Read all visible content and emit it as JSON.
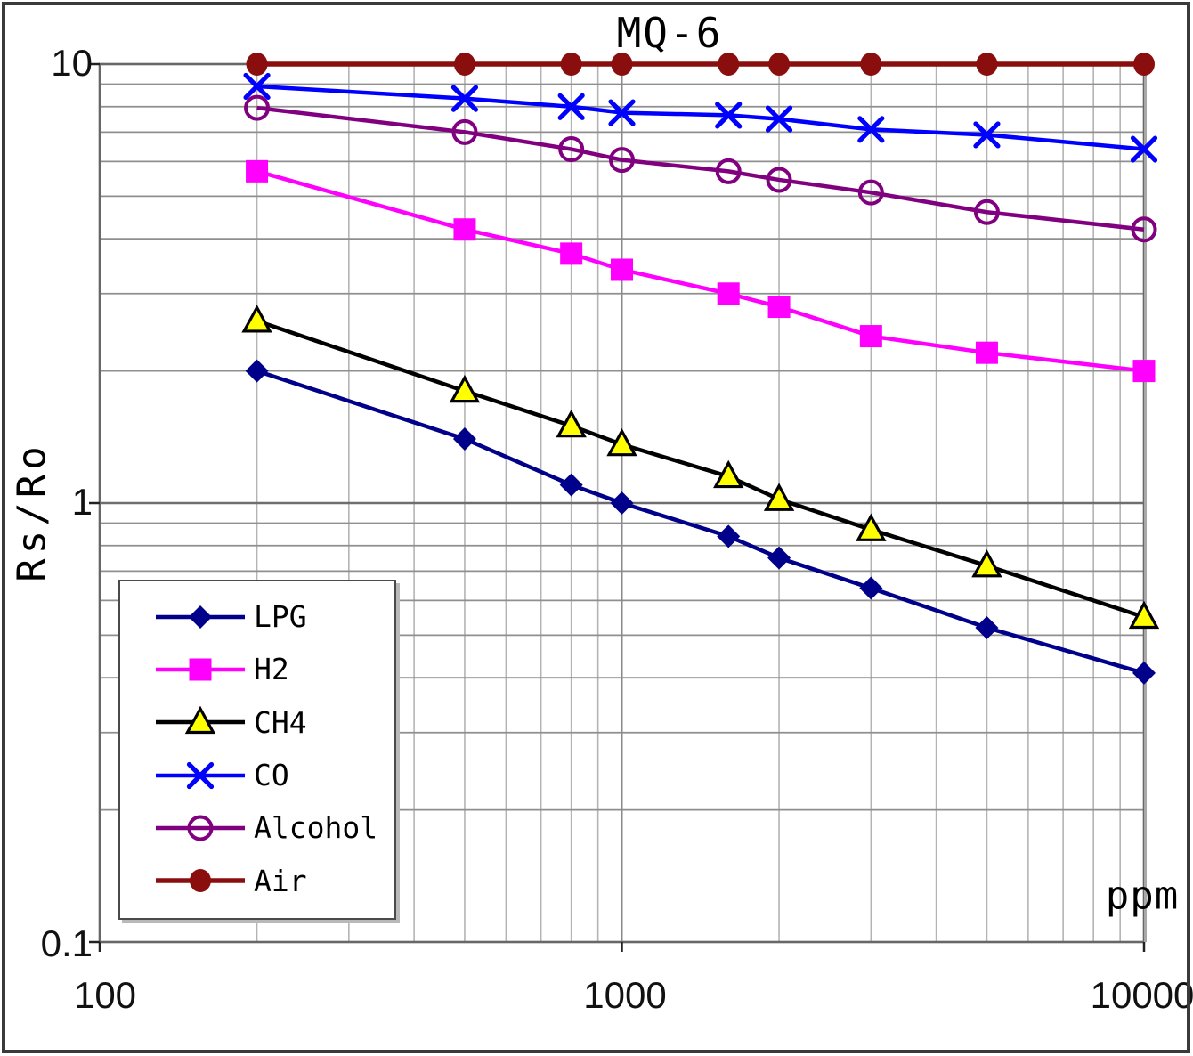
{
  "chart_data": {
    "type": "line",
    "title": "MQ-6",
    "x_axis": {
      "label": "ppm",
      "scale": "log",
      "min": 100,
      "max": 10000,
      "tick_labels": [
        "100",
        "1000",
        "10000"
      ]
    },
    "y_axis": {
      "label": "Rs/Ro",
      "scale": "log",
      "min": 0.1,
      "max": 10,
      "tick_labels": [
        "10",
        "1",
        "0.1"
      ]
    },
    "grid": {
      "major": true,
      "minor": true
    },
    "legend_position": "lower-left",
    "x": [
      200,
      500,
      800,
      1000,
      1600,
      2000,
      3000,
      5000,
      10000
    ],
    "series": [
      {
        "name": "LPG",
        "color": "#00008B",
        "marker": "diamond",
        "marker_fill": "#00008B",
        "values": [
          2.0,
          1.4,
          1.1,
          1.0,
          0.84,
          0.75,
          0.64,
          0.52,
          0.41
        ]
      },
      {
        "name": "H2",
        "color": "#FF00FF",
        "marker": "square",
        "marker_fill": "#FF00FF",
        "values": [
          5.7,
          4.2,
          3.7,
          3.4,
          3.0,
          2.8,
          2.4,
          2.2,
          2.0
        ]
      },
      {
        "name": "CH4",
        "color": "#000000",
        "marker": "triangle",
        "marker_fill": "#FFFF00",
        "values": [
          2.6,
          1.8,
          1.5,
          1.36,
          1.15,
          1.02,
          0.87,
          0.72,
          0.55
        ]
      },
      {
        "name": "CO",
        "color": "#0000FF",
        "marker": "x",
        "marker_fill": "#0000FF",
        "values": [
          8.9,
          8.35,
          8.0,
          7.75,
          7.65,
          7.5,
          7.1,
          6.9,
          6.4
        ]
      },
      {
        "name": "Alcohol",
        "color": "#800080",
        "marker": "circle-open",
        "marker_fill": "none",
        "values": [
          7.95,
          7.0,
          6.4,
          6.05,
          5.7,
          5.45,
          5.1,
          4.6,
          4.2
        ]
      },
      {
        "name": "Air",
        "color": "#8B0E0E",
        "marker": "circle-filled",
        "marker_fill": "#8B0E0E",
        "values": [
          10,
          10,
          10,
          10,
          10,
          10,
          10,
          10,
          10
        ]
      }
    ]
  }
}
